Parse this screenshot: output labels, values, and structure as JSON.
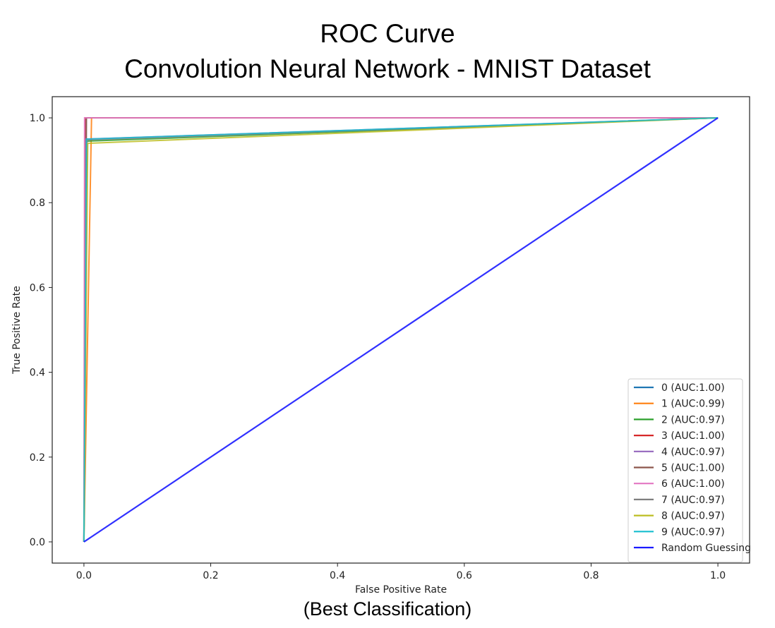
{
  "chart_data": {
    "type": "line",
    "title": "ROC Curve",
    "subtitle": "Convolution Neural Network - MNIST Dataset",
    "caption": "(Best Classification)",
    "xlabel": "False Positive Rate",
    "ylabel": "True Positive Rate",
    "xlim": [
      -0.05,
      1.05
    ],
    "ylim": [
      -0.05,
      1.05
    ],
    "xticks": [
      "0.0",
      "0.2",
      "0.4",
      "0.6",
      "0.8",
      "1.0"
    ],
    "yticks": [
      "0.0",
      "0.2",
      "0.4",
      "0.6",
      "0.8",
      "1.0"
    ],
    "xtick_values": [
      0.0,
      0.2,
      0.4,
      0.6,
      0.8,
      1.0
    ],
    "ytick_values": [
      0.0,
      0.2,
      0.4,
      0.6,
      0.8,
      1.0
    ],
    "legend_position": "lower-right",
    "series": [
      {
        "name": "0 (AUC:1.00)",
        "color": "#1f77b4",
        "x": [
          0,
          0.003,
          1
        ],
        "y": [
          0,
          1.0,
          1.0
        ]
      },
      {
        "name": "1 (AUC:0.99)",
        "color": "#ff7f0e",
        "x": [
          0,
          0.012,
          1
        ],
        "y": [
          0,
          1.0,
          1.0
        ]
      },
      {
        "name": "2 (AUC:0.97)",
        "color": "#2ca02c",
        "x": [
          0,
          0.004,
          1
        ],
        "y": [
          0,
          0.945,
          1.0
        ]
      },
      {
        "name": "3 (AUC:1.00)",
        "color": "#d62728",
        "x": [
          0,
          0.002,
          1
        ],
        "y": [
          0,
          1.0,
          1.0
        ]
      },
      {
        "name": "4 (AUC:0.97)",
        "color": "#9467bd",
        "x": [
          0,
          0.003,
          1
        ],
        "y": [
          0,
          0.95,
          1.0
        ]
      },
      {
        "name": "5 (AUC:1.00)",
        "color": "#8c564b",
        "x": [
          0,
          0.004,
          1
        ],
        "y": [
          0,
          1.0,
          1.0
        ]
      },
      {
        "name": "6 (AUC:1.00)",
        "color": "#e377c2",
        "x": [
          0,
          0.001,
          1
        ],
        "y": [
          0,
          1.0,
          1.0
        ]
      },
      {
        "name": "7 (AUC:0.97)",
        "color": "#7f7f7f",
        "x": [
          0,
          0.005,
          1
        ],
        "y": [
          0,
          0.948,
          1.0
        ]
      },
      {
        "name": "8 (AUC:0.97)",
        "color": "#bcbd22",
        "x": [
          0,
          0.006,
          1
        ],
        "y": [
          0,
          0.94,
          1.0
        ]
      },
      {
        "name": "9 (AUC:0.97)",
        "color": "#17becf",
        "x": [
          0,
          0.004,
          1
        ],
        "y": [
          0,
          0.95,
          1.0
        ]
      },
      {
        "name": "Random Guessing",
        "color": "#1a1aff",
        "x": [
          0,
          1
        ],
        "y": [
          0,
          1
        ]
      }
    ]
  }
}
